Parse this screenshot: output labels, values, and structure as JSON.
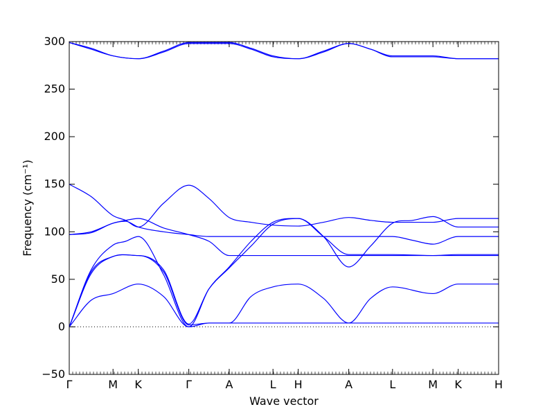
{
  "chart_data": {
    "type": "line",
    "title": "",
    "xlabel": "Wave vector",
    "ylabel": "Frequency (cm⁻¹)",
    "ylim": [
      -50,
      300
    ],
    "y_ticks": [
      -50,
      0,
      50,
      100,
      150,
      200,
      250,
      300
    ],
    "y_tick_labels": [
      "−50",
      "0",
      "50",
      "100",
      "150",
      "200",
      "250",
      "300"
    ],
    "xlim": [
      0,
      5.1
    ],
    "x_ticks": [
      {
        "label": "Γ",
        "x": 0.0
      },
      {
        "label": "M",
        "x": 0.52
      },
      {
        "label": "K",
        "x": 0.82
      },
      {
        "label": "Γ",
        "x": 1.42
      },
      {
        "label": "A",
        "x": 1.9
      },
      {
        "label": "L",
        "x": 2.42
      },
      {
        "label": "H",
        "x": 2.72
      },
      {
        "label": "A",
        "x": 3.32
      },
      {
        "label": "L",
        "x": 3.84
      },
      {
        "label": "M",
        "x": 4.32
      },
      {
        "label": "K",
        "x": 4.62
      },
      {
        "label": "H",
        "x": 5.1
      }
    ],
    "zero_line": true,
    "line_color": "#0000ff",
    "series": [
      {
        "x": [
          0,
          0.26,
          0.52,
          0.82,
          1.12,
          1.42,
          1.66,
          1.9,
          2.16,
          2.42,
          2.72,
          3.02,
          3.32,
          3.58,
          3.84,
          4.32,
          4.62,
          5.1
        ],
        "y": [
          299,
          293,
          285,
          282,
          290,
          299,
          299,
          299,
          293,
          285,
          282,
          290,
          298,
          292,
          285,
          285,
          282,
          282
        ]
      },
      {
        "x": [
          0,
          0.26,
          0.52,
          0.82,
          1.12,
          1.42,
          1.66,
          1.9,
          2.16,
          2.42,
          2.72,
          3.02,
          3.32,
          3.58,
          3.84,
          4.32,
          4.62,
          5.1
        ],
        "y": [
          299,
          292,
          285,
          282,
          289,
          298,
          298,
          298,
          292,
          284,
          282,
          289,
          298,
          292,
          284,
          284,
          282,
          282
        ]
      },
      {
        "x": [
          0,
          0.26,
          0.52,
          0.67,
          0.82,
          1.12,
          1.42,
          1.66,
          1.9,
          2.16,
          2.42,
          2.72,
          3.02,
          3.32,
          3.58,
          3.84,
          4.08,
          4.32,
          4.62,
          5.1
        ],
        "y": [
          150,
          137,
          117,
          112,
          105,
          130,
          149,
          135,
          115,
          110,
          107,
          106,
          110,
          115,
          112,
          110,
          110,
          110,
          114,
          114
        ]
      },
      {
        "x": [
          0,
          0.26,
          0.52,
          0.67,
          0.82,
          1.12,
          1.42,
          1.66,
          1.9,
          2.16,
          2.42,
          2.72,
          3.02,
          3.32,
          3.58,
          3.84,
          4.08,
          4.32,
          4.62,
          5.1
        ],
        "y": [
          97,
          100,
          109,
          112,
          114,
          104,
          97,
          90,
          75,
          75,
          75,
          75,
          75,
          75,
          75,
          75,
          75,
          75,
          75,
          75
        ]
      },
      {
        "x": [
          0,
          0.26,
          0.52,
          0.67,
          0.82,
          1.12,
          1.42,
          1.66,
          1.9,
          2.16,
          2.42,
          2.72,
          3.02,
          3.32,
          3.58,
          3.84,
          4.08,
          4.32,
          4.62,
          5.1
        ],
        "y": [
          97,
          99,
          109,
          111,
          105,
          100,
          97,
          95,
          95,
          95,
          95,
          95,
          95,
          95,
          95,
          95,
          91,
          87,
          95,
          95
        ]
      },
      {
        "x": [
          0,
          0.26,
          0.52,
          0.67,
          0.82,
          1.12,
          1.42,
          1.66,
          1.9,
          2.16,
          2.42,
          2.72,
          3.02,
          3.32,
          3.58,
          3.84,
          4.08,
          4.32,
          4.62,
          5.1
        ],
        "y": [
          0,
          60,
          86,
          90,
          95,
          55,
          0,
          40,
          63,
          90,
          110,
          114,
          95,
          63,
          85,
          109,
          112,
          116,
          105,
          105
        ]
      },
      {
        "x": [
          0,
          0.26,
          0.52,
          0.82,
          1.12,
          1.42,
          1.66,
          1.9,
          2.16,
          2.42,
          2.72,
          3.02,
          3.32,
          3.58,
          3.84,
          4.32,
          4.62,
          5.1
        ],
        "y": [
          0,
          58,
          74,
          75,
          60,
          3,
          40,
          62,
          85,
          108,
          114,
          95,
          76,
          76,
          76,
          75,
          76,
          76
        ]
      },
      {
        "x": [
          0,
          0.26,
          0.52,
          0.82,
          1.12,
          1.42,
          1.66,
          1.9,
          2.16,
          2.42,
          2.72,
          3.02,
          3.32,
          3.58,
          3.84,
          4.32,
          4.62,
          5.1
        ],
        "y": [
          0,
          56,
          74,
          75,
          58,
          2,
          4,
          4,
          4,
          4,
          4,
          4,
          4,
          4,
          4,
          4,
          4,
          4
        ]
      },
      {
        "x": [
          0,
          0.26,
          0.52,
          0.82,
          1.12,
          1.42,
          1.66,
          1.9,
          2.16,
          2.42,
          2.72,
          3.02,
          3.32,
          3.58,
          3.84,
          4.32,
          4.62,
          5.1
        ],
        "y": [
          0,
          28,
          35,
          45,
          32,
          0,
          4,
          4,
          32,
          42,
          45,
          30,
          4,
          30,
          42,
          35,
          45,
          45
        ]
      }
    ]
  }
}
